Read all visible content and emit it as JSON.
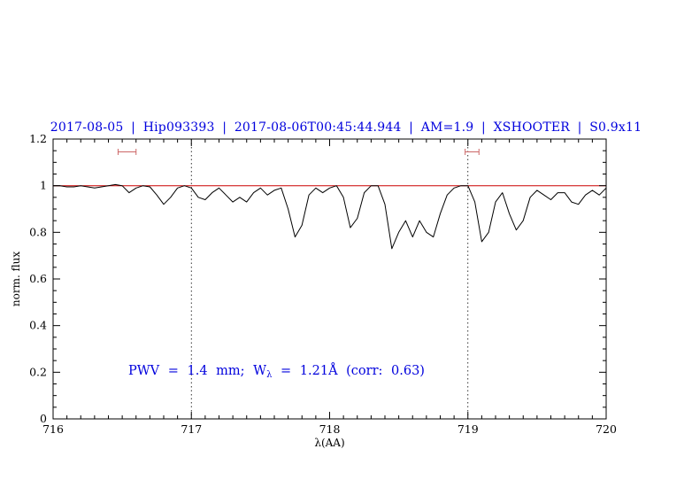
{
  "title": {
    "text": "2017-08-05 | Hip093393 | 2017-08-06T00:45:44.944 | AM=1.9 | XSHOOTER | S0.9x11",
    "color": "#0000dd"
  },
  "annotation": {
    "prefix": "PWV = 1.4 mm; W",
    "sub": "λ",
    "suffix": " = 1.21Å (corr: 0.63)",
    "color": "#0000dd"
  },
  "axes": {
    "xlabel": "λ(AA)",
    "ylabel": "norm. flux",
    "x_ticks": [
      "716",
      "717",
      "718",
      "719",
      "720"
    ],
    "y_ticks": [
      "0",
      "0.2",
      "0.4",
      "0.6",
      "0.8",
      "1",
      "1.2"
    ]
  },
  "chart_data": {
    "type": "line",
    "title": "Telluric water-vapour absorption spectrum near 716-720 AA (x10 nm)",
    "xlabel": "λ(AA)",
    "ylabel": "norm. flux",
    "xlim": [
      716,
      720
    ],
    "ylim": [
      0,
      1.2
    ],
    "grid": false,
    "legend": "none",
    "marker_color": "#cc6666",
    "reference_lines": {
      "vertical_dotted": [
        717,
        719
      ]
    },
    "markers": [
      {
        "x1": 716.47,
        "x2": 716.6,
        "y": 1.145
      },
      {
        "x1": 718.98,
        "x2": 719.08,
        "y": 1.145
      }
    ],
    "series": [
      {
        "name": "continuum",
        "color": "#cc0000",
        "width": 1,
        "x": [
          716,
          720
        ],
        "y": [
          1,
          1
        ]
      },
      {
        "name": "normalized spectrum",
        "color": "#000000",
        "width": 1,
        "x": [
          716.0,
          716.05,
          716.1,
          716.15,
          716.2,
          716.25,
          716.3,
          716.35,
          716.4,
          716.45,
          716.5,
          716.55,
          716.6,
          716.65,
          716.7,
          716.75,
          716.8,
          716.85,
          716.9,
          716.95,
          717.0,
          717.05,
          717.1,
          717.15,
          717.2,
          717.25,
          717.3,
          717.35,
          717.4,
          717.45,
          717.5,
          717.55,
          717.6,
          717.65,
          717.7,
          717.75,
          717.8,
          717.85,
          717.9,
          717.95,
          718.0,
          718.05,
          718.1,
          718.15,
          718.2,
          718.25,
          718.3,
          718.35,
          718.4,
          718.45,
          718.5,
          718.55,
          718.6,
          718.65,
          718.7,
          718.75,
          718.8,
          718.85,
          718.9,
          718.95,
          719.0,
          719.05,
          719.1,
          719.15,
          719.2,
          719.25,
          719.3,
          719.35,
          719.4,
          719.45,
          719.5,
          719.55,
          719.6,
          719.65,
          719.7,
          719.75,
          719.8,
          719.85,
          719.9,
          719.95,
          720.0
        ],
        "y": [
          1.0,
          1.0,
          0.995,
          0.995,
          1.0,
          0.995,
          0.99,
          0.995,
          1.0,
          1.005,
          1.0,
          0.97,
          0.99,
          1.0,
          0.995,
          0.96,
          0.92,
          0.95,
          0.99,
          1.0,
          0.99,
          0.95,
          0.94,
          0.97,
          0.99,
          0.96,
          0.93,
          0.95,
          0.93,
          0.97,
          0.99,
          0.96,
          0.98,
          0.99,
          0.9,
          0.78,
          0.83,
          0.96,
          0.99,
          0.97,
          0.99,
          1.0,
          0.95,
          0.82,
          0.86,
          0.97,
          1.0,
          1.0,
          0.92,
          0.73,
          0.8,
          0.85,
          0.78,
          0.85,
          0.8,
          0.78,
          0.88,
          0.96,
          0.99,
          1.0,
          1.0,
          0.93,
          0.76,
          0.8,
          0.93,
          0.97,
          0.88,
          0.81,
          0.85,
          0.95,
          0.98,
          0.96,
          0.94,
          0.97,
          0.97,
          0.93,
          0.92,
          0.96,
          0.98,
          0.96,
          0.99
        ]
      }
    ]
  }
}
